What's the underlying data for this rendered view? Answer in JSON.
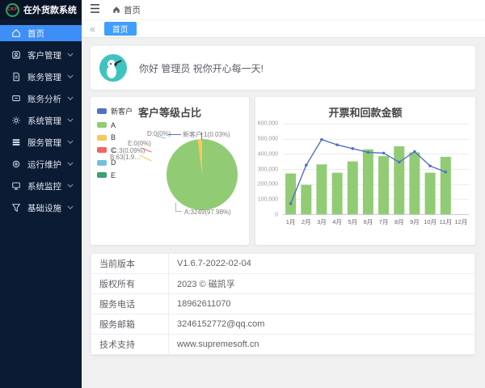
{
  "app": {
    "logo_text": "CKF",
    "title": "在外货款系统"
  },
  "topbar": {
    "breadcrumb": {
      "home_label": "首页"
    }
  },
  "tabbar": {
    "collapse_label": "«",
    "tabs": [
      {
        "label": "首页",
        "active": true
      }
    ]
  },
  "sidebar": {
    "items": [
      {
        "label": "首页",
        "icon": "home-icon",
        "active": true,
        "expandable": false
      },
      {
        "label": "客户管理",
        "icon": "customer-icon",
        "active": false,
        "expandable": true
      },
      {
        "label": "账务管理",
        "icon": "billing-icon",
        "active": false,
        "expandable": true
      },
      {
        "label": "账务分析",
        "icon": "analysis-icon",
        "active": false,
        "expandable": true
      },
      {
        "label": "系统管理",
        "icon": "gear-icon",
        "active": false,
        "expandable": true
      },
      {
        "label": "服务管理",
        "icon": "service-icon",
        "active": false,
        "expandable": true
      },
      {
        "label": "运行维护",
        "icon": "operations-icon",
        "active": false,
        "expandable": true
      },
      {
        "label": "系统监控",
        "icon": "monitor-icon",
        "active": false,
        "expandable": true
      },
      {
        "label": "基础设施",
        "icon": "infrastructure-icon",
        "active": false,
        "expandable": true
      }
    ]
  },
  "greeting": {
    "text": "你好 管理员 祝你开心每一天!"
  },
  "chart_data": [
    {
      "type": "pie",
      "title": "客户等级占比",
      "legend_position": "top-left",
      "slices": [
        {
          "name": "新客户",
          "value": 1,
          "pct": 0.03,
          "color": "#5470c6",
          "label": "新客户:1(0.03%)"
        },
        {
          "name": "A",
          "value": 3249,
          "pct": 97.98,
          "color": "#91cc75",
          "label": "A:3249(97.98%)"
        },
        {
          "name": "B",
          "value": 63,
          "pct": 1.9,
          "color": "#fac858",
          "label": "B:63(1.9…"
        },
        {
          "name": "C",
          "value": 3,
          "pct": 0.09,
          "color": "#ee6666",
          "label": "C:3(0.09%)"
        },
        {
          "name": "D",
          "value": 0,
          "pct": 0,
          "color": "#73c0de",
          "label": "D:0(0%)"
        },
        {
          "name": "E",
          "value": 0,
          "pct": 0,
          "color": "#3ba272",
          "label": "E:0(0%)"
        }
      ]
    },
    {
      "type": "bar",
      "title": "开票和回款金额",
      "categories": [
        "1月",
        "2月",
        "3月",
        "4月",
        "5月",
        "6月",
        "7月",
        "8月",
        "9月",
        "10月",
        "11月",
        "12月"
      ],
      "series": [
        {
          "type": "bar",
          "color": "#91cc75",
          "values": [
            270000,
            195000,
            330000,
            275000,
            350000,
            430000,
            385000,
            450000,
            410000,
            275000,
            380000,
            0
          ]
        },
        {
          "type": "line",
          "color": "#5470c6",
          "values": [
            70000,
            325000,
            495000,
            460000,
            435000,
            410000,
            405000,
            345000,
            415000,
            320000,
            280000,
            null
          ]
        }
      ],
      "ylim": [
        0,
        600000
      ],
      "yticks": [
        "600,000",
        "500,000",
        "400,000",
        "300,000",
        "200,000",
        "100,000",
        "0"
      ],
      "grid": true,
      "legend_position": "none"
    }
  ],
  "info_table": {
    "rows": [
      {
        "label": "当前版本",
        "value": "V1.6.7-2022-02-04"
      },
      {
        "label": "版权所有",
        "value": "2023 © 磁凯孚"
      },
      {
        "label": "服务电话",
        "value": "18962611070"
      },
      {
        "label": "服务邮箱",
        "value": "3246152772@qq.com"
      },
      {
        "label": "技术支持",
        "value": "www.supremesoft.cn"
      }
    ]
  },
  "colors": {
    "accent": "#409eff",
    "sidebar_bg": "#0b1b33",
    "sidebar_active": "#3e8ef7",
    "bar_green": "#91cc75",
    "line_blue": "#5470c6",
    "avatar_teal": "#3fc3c0"
  }
}
